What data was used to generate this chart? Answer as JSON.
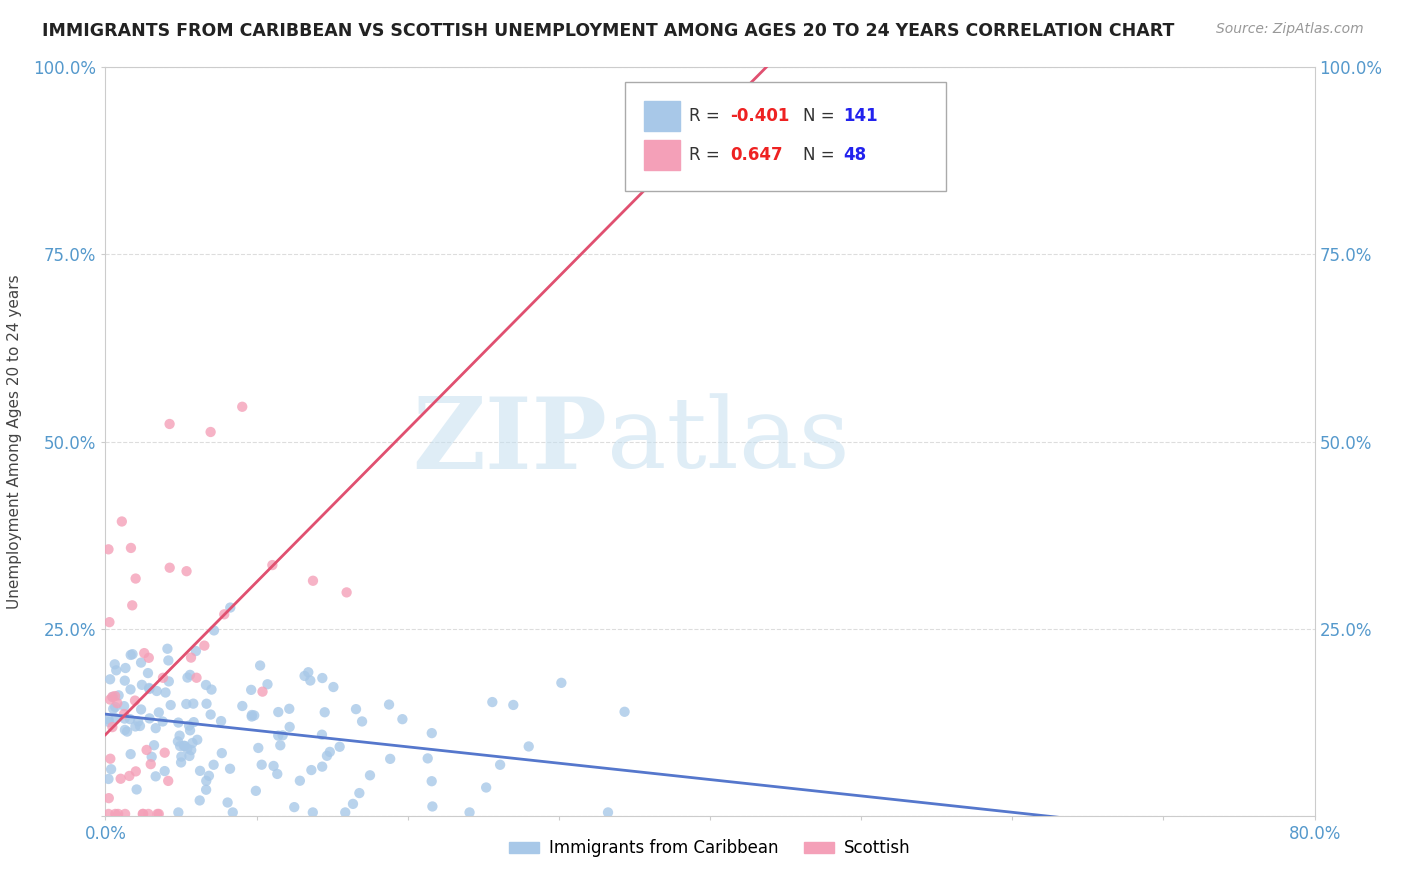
{
  "title": "IMMIGRANTS FROM CARIBBEAN VS SCOTTISH UNEMPLOYMENT AMONG AGES 20 TO 24 YEARS CORRELATION CHART",
  "source": "Source: ZipAtlas.com",
  "ylabel": "Unemployment Among Ages 20 to 24 years",
  "xlim": [
    0.0,
    0.8
  ],
  "ylim": [
    0.0,
    1.0
  ],
  "blue_R": -0.401,
  "blue_N": 141,
  "pink_R": 0.647,
  "pink_N": 48,
  "blue_color": "#a8c8e8",
  "pink_color": "#f4a0b8",
  "blue_line_color": "#5577cc",
  "pink_line_color": "#e05070",
  "watermark_zip": "ZIP",
  "watermark_atlas": "atlas",
  "background_color": "#ffffff",
  "grid_color": "#dddddd",
  "tick_color": "#5599cc",
  "title_color": "#222222",
  "source_color": "#999999",
  "ylabel_color": "#444444"
}
